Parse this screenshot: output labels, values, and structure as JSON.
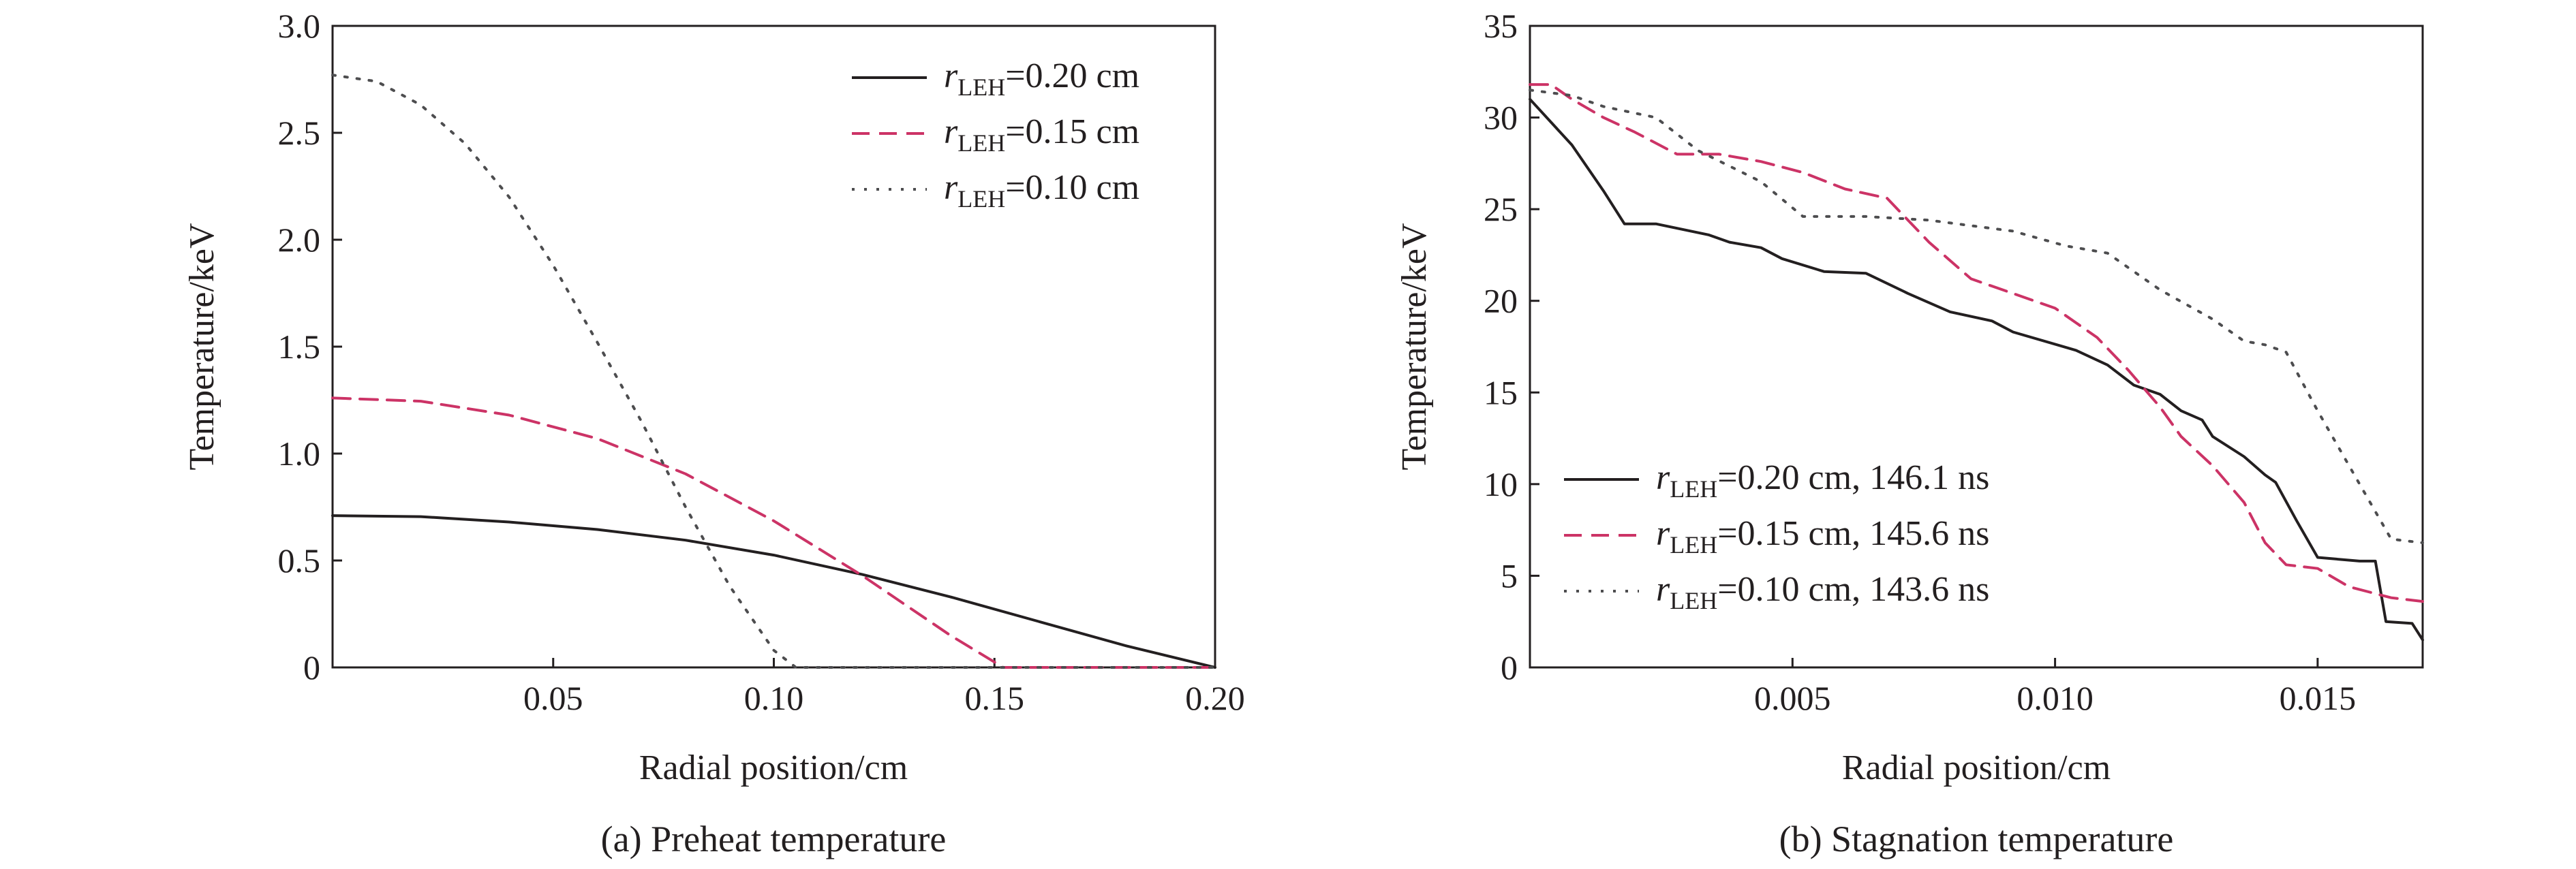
{
  "chart_data": [
    {
      "type": "line",
      "caption": "(a) Preheat temperature",
      "xlabel": "Radial position/cm",
      "ylabel": "Temperature/keV",
      "xlim": [
        0,
        0.2
      ],
      "ylim": [
        0,
        3.0
      ],
      "xticks": [
        0.05,
        0.1,
        0.15,
        0.2
      ],
      "xtick_labels": [
        "0.05",
        "0.10",
        "0.15",
        "0.20"
      ],
      "yticks": [
        0,
        0.5,
        1.0,
        1.5,
        2.0,
        2.5,
        3.0
      ],
      "ytick_labels": [
        "0",
        "0.5",
        "1.0",
        "1.5",
        "2.0",
        "2.5",
        "3.0"
      ],
      "legend_position": "top-right",
      "series": [
        {
          "legend_r": "r",
          "legend_sub": "LEH",
          "legend_value": "=0.20 cm",
          "color": "#231f20",
          "dash": "solid",
          "points": [
            [
              0,
              0.71
            ],
            [
              0.02,
              0.705
            ],
            [
              0.04,
              0.68
            ],
            [
              0.06,
              0.645
            ],
            [
              0.08,
              0.595
            ],
            [
              0.1,
              0.525
            ],
            [
              0.12,
              0.435
            ],
            [
              0.14,
              0.33
            ],
            [
              0.16,
              0.215
            ],
            [
              0.18,
              0.1
            ],
            [
              0.2,
              0.0
            ]
          ]
        },
        {
          "legend_r": "r",
          "legend_sub": "LEH",
          "legend_value": "=0.15 cm",
          "color": "#cc3366",
          "dash": "dashed",
          "points": [
            [
              0,
              1.26
            ],
            [
              0.02,
              1.245
            ],
            [
              0.04,
              1.18
            ],
            [
              0.06,
              1.07
            ],
            [
              0.08,
              0.905
            ],
            [
              0.1,
              0.685
            ],
            [
              0.12,
              0.43
            ],
            [
              0.14,
              0.15
            ],
            [
              0.152,
              0.0
            ],
            [
              0.2,
              0.0
            ]
          ]
        },
        {
          "legend_r": "r",
          "legend_sub": "LEH",
          "legend_value": "=0.10 cm",
          "color": "#4d4d4f",
          "dash": "dotted",
          "points": [
            [
              0,
              2.77
            ],
            [
              0.01,
              2.74
            ],
            [
              0.02,
              2.63
            ],
            [
              0.03,
              2.45
            ],
            [
              0.04,
              2.2
            ],
            [
              0.05,
              1.88
            ],
            [
              0.06,
              1.52
            ],
            [
              0.07,
              1.15
            ],
            [
              0.08,
              0.75
            ],
            [
              0.09,
              0.38
            ],
            [
              0.1,
              0.08
            ],
            [
              0.105,
              0.0
            ],
            [
              0.2,
              0.0
            ]
          ]
        }
      ]
    },
    {
      "type": "line",
      "caption": "(b) Stagnation temperature",
      "xlabel": "Radial position/cm",
      "ylabel": "Temperature/keV",
      "xlim": [
        0,
        0.017
      ],
      "ylim": [
        0,
        35
      ],
      "xticks": [
        0.005,
        0.01,
        0.015
      ],
      "xtick_labels": [
        "0.005",
        "0.010",
        "0.015"
      ],
      "yticks": [
        0,
        5,
        10,
        15,
        20,
        25,
        30,
        35
      ],
      "ytick_labels": [
        "0",
        "5",
        "10",
        "15",
        "20",
        "25",
        "30",
        "35"
      ],
      "legend_position": "bottom-left",
      "series": [
        {
          "legend_r": "r",
          "legend_sub": "LEH",
          "legend_value": "=0.20 cm, 146.1 ns",
          "color": "#231f20",
          "dash": "solid",
          "points": [
            [
              0,
              31
            ],
            [
              0.0008,
              28.5
            ],
            [
              0.0014,
              26
            ],
            [
              0.0018,
              24.2
            ],
            [
              0.0024,
              24.2
            ],
            [
              0.0034,
              23.6
            ],
            [
              0.0038,
              23.2
            ],
            [
              0.0044,
              22.9
            ],
            [
              0.0048,
              22.3
            ],
            [
              0.0056,
              21.6
            ],
            [
              0.0064,
              21.5
            ],
            [
              0.0072,
              20.4
            ],
            [
              0.008,
              19.4
            ],
            [
              0.0088,
              18.9
            ],
            [
              0.0092,
              18.3
            ],
            [
              0.0104,
              17.3
            ],
            [
              0.011,
              16.5
            ],
            [
              0.0115,
              15.4
            ],
            [
              0.012,
              14.9
            ],
            [
              0.0124,
              14.0
            ],
            [
              0.0128,
              13.5
            ],
            [
              0.013,
              12.6
            ],
            [
              0.0136,
              11.5
            ],
            [
              0.014,
              10.5
            ],
            [
              0.0142,
              10.1
            ],
            [
              0.0146,
              8.0
            ],
            [
              0.015,
              6.0
            ],
            [
              0.0158,
              5.8
            ],
            [
              0.0161,
              5.8
            ],
            [
              0.0163,
              2.5
            ],
            [
              0.0168,
              2.4
            ],
            [
              0.017,
              1.5
            ]
          ]
        },
        {
          "legend_r": "r",
          "legend_sub": "LEH",
          "legend_value": "=0.15 cm, 145.6 ns",
          "color": "#cc3366",
          "dash": "dashed",
          "points": [
            [
              0,
              31.8
            ],
            [
              0.0004,
              31.8
            ],
            [
              0.0008,
              31.0
            ],
            [
              0.0014,
              30.0
            ],
            [
              0.002,
              29.2
            ],
            [
              0.0028,
              28.0
            ],
            [
              0.0036,
              28.0
            ],
            [
              0.0044,
              27.6
            ],
            [
              0.0052,
              27.0
            ],
            [
              0.006,
              26.1
            ],
            [
              0.0068,
              25.6
            ],
            [
              0.0076,
              23.2
            ],
            [
              0.0084,
              21.2
            ],
            [
              0.0092,
              20.4
            ],
            [
              0.01,
              19.6
            ],
            [
              0.0108,
              18.0
            ],
            [
              0.0114,
              16.2
            ],
            [
              0.012,
              14.2
            ],
            [
              0.0124,
              12.6
            ],
            [
              0.013,
              11.0
            ],
            [
              0.0136,
              9.0
            ],
            [
              0.014,
              6.8
            ],
            [
              0.0144,
              5.6
            ],
            [
              0.015,
              5.4
            ],
            [
              0.0156,
              4.4
            ],
            [
              0.0164,
              3.8
            ],
            [
              0.017,
              3.6
            ]
          ]
        },
        {
          "legend_r": "r",
          "legend_sub": "LEH",
          "legend_value": "=0.10 cm, 143.6 ns",
          "color": "#4d4d4f",
          "dash": "dotted",
          "points": [
            [
              0,
              31.5
            ],
            [
              0.0008,
              31.2
            ],
            [
              0.0014,
              30.6
            ],
            [
              0.0024,
              30.0
            ],
            [
              0.0032,
              28.2
            ],
            [
              0.0044,
              26.5
            ],
            [
              0.0052,
              24.6
            ],
            [
              0.0064,
              24.6
            ],
            [
              0.0076,
              24.4
            ],
            [
              0.0092,
              23.8
            ],
            [
              0.0102,
              23.0
            ],
            [
              0.011,
              22.6
            ],
            [
              0.012,
              20.6
            ],
            [
              0.013,
              19.0
            ],
            [
              0.0136,
              17.8
            ],
            [
              0.014,
              17.6
            ],
            [
              0.0144,
              17.2
            ],
            [
              0.015,
              14.0
            ],
            [
              0.0158,
              10.0
            ],
            [
              0.0164,
              7.0
            ],
            [
              0.017,
              6.8
            ]
          ]
        }
      ]
    }
  ]
}
